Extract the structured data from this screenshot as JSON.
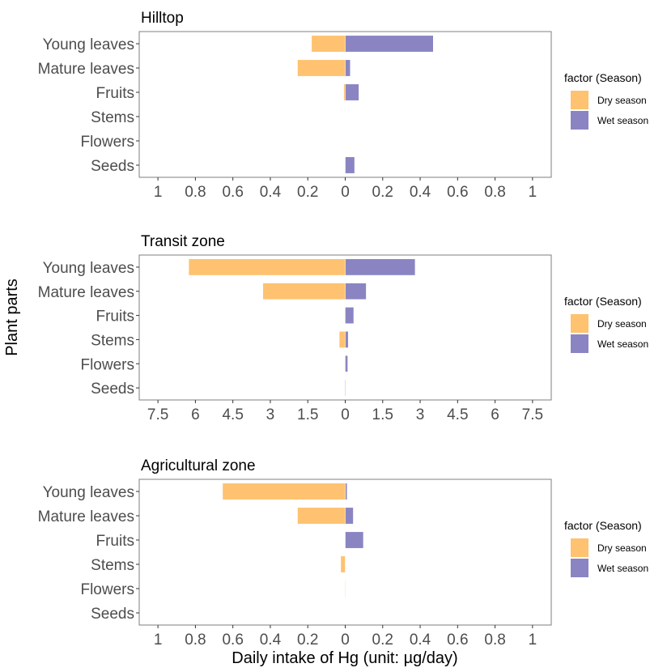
{
  "chart_data": [
    {
      "type": "bar",
      "orientation": "horizontal-diverging",
      "title": "Hilltop",
      "categories": [
        "Young leaves",
        "Mature leaves",
        "Fruits",
        "Stems",
        "Flowers",
        "Seeds"
      ],
      "series": [
        {
          "name": "Dry season",
          "color": "#FEC270",
          "direction": "left",
          "values": [
            0.18,
            0.255,
            0.008,
            0,
            0,
            0
          ]
        },
        {
          "name": "Wet season",
          "color": "#8A85C2",
          "direction": "right",
          "values": [
            0.47,
            0.027,
            0.073,
            0,
            0,
            0.05
          ]
        }
      ],
      "xlim": [
        -1.1,
        1.1
      ],
      "xticks": [
        -1,
        -0.8,
        -0.6,
        -0.4,
        -0.2,
        0,
        0.2,
        0.4,
        0.6,
        0.8,
        1
      ],
      "xtick_labels": [
        "1",
        "0.8",
        "0.6",
        "0.4",
        "0.2",
        "0",
        "0.2",
        "0.4",
        "0.6",
        "0.8",
        "1"
      ],
      "legend": {
        "title": "factor (Season)",
        "position": "right"
      }
    },
    {
      "type": "bar",
      "orientation": "horizontal-diverging",
      "title": "Transit zone",
      "categories": [
        "Young leaves",
        "Mature leaves",
        "Fruits",
        "Stems",
        "Flowers",
        "Seeds"
      ],
      "series": [
        {
          "name": "Dry season",
          "color": "#FEC270",
          "direction": "left",
          "values": [
            6.27,
            3.3,
            0.02,
            0.24,
            0.02,
            0.01
          ]
        },
        {
          "name": "Wet season",
          "color": "#8A85C2",
          "direction": "right",
          "values": [
            2.8,
            0.84,
            0.34,
            0.12,
            0.1,
            0.01
          ]
        }
      ],
      "xlim": [
        -8.25,
        8.25
      ],
      "xticks": [
        -7.5,
        -6,
        -4.5,
        -3,
        -1.5,
        0,
        1.5,
        3,
        4.5,
        6,
        7.5
      ],
      "xtick_labels": [
        "7.5",
        "6",
        "4.5",
        "3",
        "1.5",
        "0",
        "1.5",
        "3",
        "4.5",
        "6",
        "7.5"
      ],
      "legend": {
        "title": "factor (Season)",
        "position": "right"
      }
    },
    {
      "type": "bar",
      "orientation": "horizontal-diverging",
      "title": "Agricultural zone",
      "categories": [
        "Young leaves",
        "Mature leaves",
        "Fruits",
        "Stems",
        "Flowers",
        "Seeds"
      ],
      "series": [
        {
          "name": "Dry season",
          "color": "#FEC270",
          "direction": "left",
          "values": [
            0.655,
            0.255,
            0,
            0.024,
            0.002,
            0
          ]
        },
        {
          "name": "Wet season",
          "color": "#8A85C2",
          "direction": "right",
          "values": [
            0.01,
            0.043,
            0.097,
            0,
            0,
            0
          ]
        }
      ],
      "xlim": [
        -1.1,
        1.1
      ],
      "xticks": [
        -1,
        -0.8,
        -0.6,
        -0.4,
        -0.2,
        0,
        0.2,
        0.4,
        0.6,
        0.8,
        1
      ],
      "xtick_labels": [
        "1",
        "0.8",
        "0.6",
        "0.4",
        "0.2",
        "0",
        "0.2",
        "0.4",
        "0.6",
        "0.8",
        "1"
      ],
      "legend": {
        "title": "factor (Season)",
        "position": "right"
      }
    }
  ],
  "ylabel": "Plant parts",
  "xlabel": "Daily intake of Hg (unit: µg/day)"
}
